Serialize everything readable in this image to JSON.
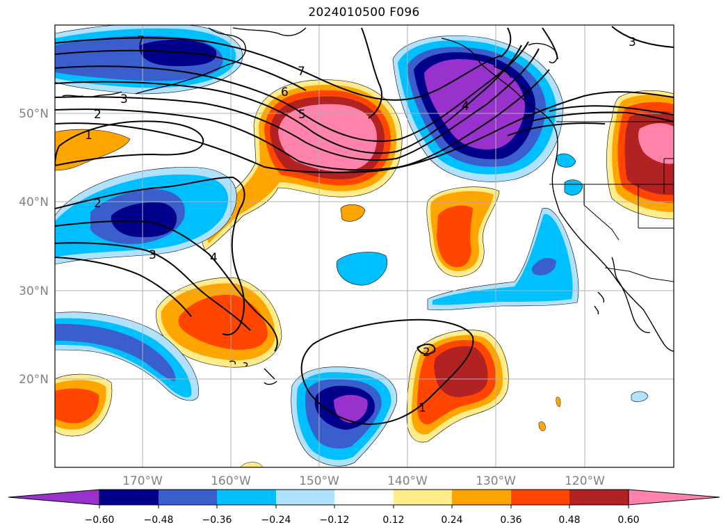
{
  "title": "2024010500 F096",
  "map": {
    "lon_labels": [
      "170°W",
      "160°W",
      "150°W",
      "140°W",
      "130°W",
      "120°W"
    ],
    "lat_labels": [
      "50°N",
      "40°N",
      "30°N",
      "20°N"
    ],
    "contour_labels": [
      "7",
      "3",
      "2",
      "1",
      "2",
      "3",
      "7",
      "6",
      "5",
      "4",
      "4",
      "3",
      "1",
      "2"
    ]
  },
  "colorbar": {
    "ticks": [
      "−0.60",
      "−0.48",
      "−0.36",
      "−0.24",
      "−0.12",
      "0.12",
      "0.24",
      "0.36",
      "0.48",
      "0.60"
    ],
    "colors": [
      "#9932cc",
      "#00008b",
      "#3a5fcd",
      "#00bfff",
      "#b0e2ff",
      "#ffffff",
      "#ffec8b",
      "#ffa500",
      "#ff4500",
      "#b22222",
      "#ff82ab"
    ]
  }
}
